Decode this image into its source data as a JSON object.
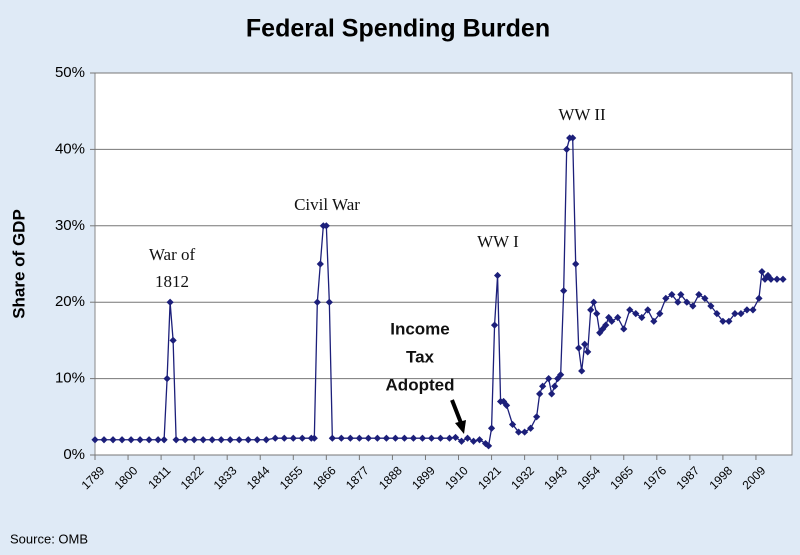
{
  "chart_data": {
    "type": "line",
    "title": "Federal Spending Burden",
    "y_label": "Share of GDP",
    "source": "Source: OMB",
    "annotations": [
      {
        "lines": [
          "War of",
          "1812"
        ]
      },
      {
        "lines": [
          "Civil War"
        ]
      },
      {
        "lines": [
          "WW I"
        ]
      },
      {
        "lines": [
          "WW II"
        ]
      },
      {
        "lines": [
          "Income",
          "Tax",
          "Adopted"
        ]
      }
    ],
    "xlim": [
      1789,
      2021
    ],
    "xticks": [
      1789,
      1800,
      1811,
      1822,
      1833,
      1844,
      1855,
      1866,
      1877,
      1888,
      1899,
      1910,
      1921,
      1932,
      1943,
      1954,
      1965,
      1976,
      1987,
      1998,
      2009
    ],
    "ylim": [
      0,
      50
    ],
    "yticks": [
      {
        "value": 0,
        "label": "0%"
      },
      {
        "value": 10,
        "label": "10%"
      },
      {
        "value": 20,
        "label": "20%"
      },
      {
        "value": 30,
        "label": "30%"
      },
      {
        "value": 40,
        "label": "40%"
      },
      {
        "value": 50,
        "label": "50%"
      }
    ],
    "grid": true,
    "series": [
      {
        "color": "#1c1f7a",
        "x": [
          1789,
          1792,
          1795,
          1798,
          1801,
          1804,
          1807,
          1810,
          1812,
          1813,
          1814,
          1815,
          1816,
          1819,
          1822,
          1825,
          1828,
          1831,
          1834,
          1837,
          1840,
          1843,
          1846,
          1849,
          1852,
          1855,
          1858,
          1861,
          1862,
          1863,
          1864,
          1865,
          1866,
          1867,
          1868,
          1871,
          1874,
          1877,
          1880,
          1883,
          1886,
          1889,
          1892,
          1895,
          1898,
          1901,
          1904,
          1907,
          1909,
          1911,
          1913,
          1915,
          1917,
          1919,
          1920,
          1921,
          1922,
          1923,
          1924,
          1925,
          1926,
          1928,
          1930,
          1932,
          1934,
          1936,
          1937,
          1938,
          1940,
          1941,
          1942,
          1943,
          1944,
          1945,
          1946,
          1947,
          1948,
          1949,
          1950,
          1951,
          1952,
          1953,
          1954,
          1955,
          1956,
          1957,
          1958,
          1959,
          1960,
          1961,
          1963,
          1965,
          1967,
          1969,
          1971,
          1973,
          1975,
          1977,
          1979,
          1981,
          1983,
          1984,
          1986,
          1988,
          1990,
          1992,
          1994,
          1996,
          1998,
          2000,
          2002,
          2004,
          2006,
          2008,
          2010,
          2011,
          2012,
          2013,
          2014,
          2016,
          2018
        ],
        "values": [
          2,
          2,
          2,
          2,
          2,
          2,
          2,
          2,
          2,
          10,
          20,
          15,
          2,
          2,
          2,
          2,
          2,
          2,
          2,
          2,
          2,
          2,
          2,
          2.2,
          2.2,
          2.2,
          2.2,
          2.2,
          2.2,
          20,
          25,
          30,
          30,
          20,
          2.2,
          2.2,
          2.2,
          2.2,
          2.2,
          2.2,
          2.2,
          2.2,
          2.2,
          2.2,
          2.2,
          2.2,
          2.2,
          2.2,
          2.3,
          1.8,
          2.2,
          1.8,
          2,
          1.5,
          1.2,
          3.5,
          17,
          23.5,
          7,
          7,
          6.5,
          4,
          3,
          3,
          3.5,
          5,
          8,
          9,
          10,
          8,
          9,
          10,
          10.5,
          21.5,
          40,
          41.5,
          41.5,
          25,
          14,
          11,
          14.5,
          13.5,
          19,
          20,
          18.5,
          16,
          16.5,
          17,
          18,
          17.5,
          18,
          16.5,
          19,
          18.5,
          18,
          19,
          17.5,
          18.5,
          20.5,
          21,
          20,
          21,
          20,
          19.5,
          21,
          20.5,
          19.5,
          18.5,
          17.5,
          17.5,
          18.5,
          18.5,
          19,
          19,
          20.5,
          24,
          23,
          23.5,
          23,
          23,
          23
        ]
      }
    ]
  }
}
